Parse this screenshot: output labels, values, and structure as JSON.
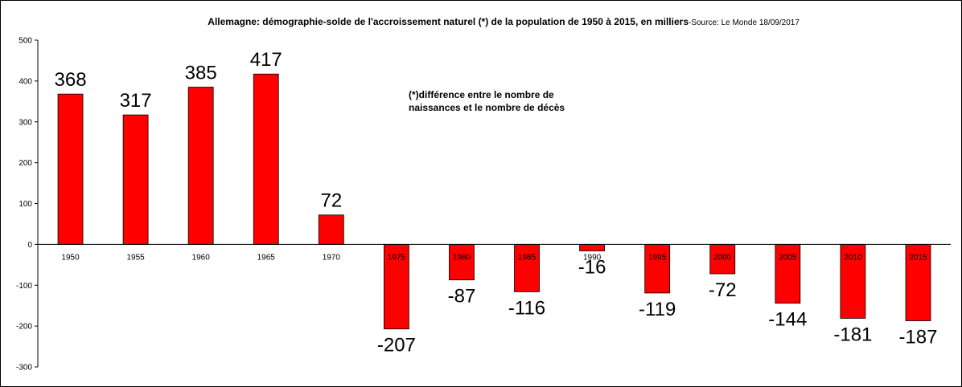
{
  "chart_data": {
    "type": "bar",
    "title": "Allemagne: démographie-solde de l'accroissement naturel (*) de la population de 1950 à 2015, en milliers",
    "source": "-Source: Le Monde 18/09/2017",
    "annotation_lines": [
      "(*)différence entre le nombre de",
      "naissances et le nombre de décès"
    ],
    "categories": [
      "1950",
      "1955",
      "1960",
      "1965",
      "1970",
      "1975",
      "1980",
      "1985",
      "1990",
      "1995",
      "2000",
      "2005",
      "2010",
      "2015"
    ],
    "values": [
      368,
      317,
      385,
      417,
      72,
      -207,
      -87,
      -116,
      -16,
      -119,
      -72,
      -144,
      -181,
      -187
    ],
    "ylim": [
      -300,
      500
    ],
    "yticks": [
      500,
      400,
      300,
      200,
      100,
      0,
      -100,
      -200,
      -300
    ],
    "xlabel": "",
    "ylabel": "",
    "grid": false,
    "legend": "none",
    "bar_color": "#ff0000"
  }
}
